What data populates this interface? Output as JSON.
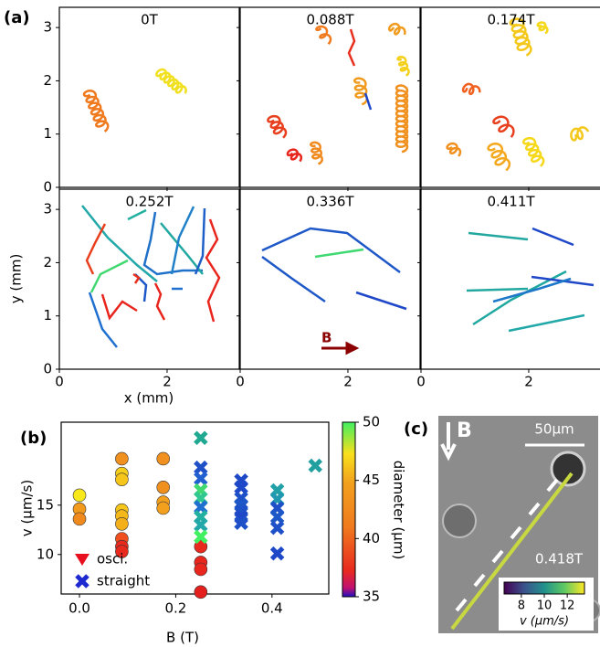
{
  "chart_data": [
    {
      "type": "trajectory",
      "panel_label": "(a)",
      "panels": [
        {
          "title": "0T"
        },
        {
          "title": "0.088T"
        },
        {
          "title": "0.174T"
        },
        {
          "title": "0.252T"
        },
        {
          "title": "0.336T"
        },
        {
          "title": "0.411T"
        }
      ],
      "xlabel": "x (mm)",
      "ylabel": "y (mm)",
      "xlim": [
        0,
        3.34
      ],
      "ylim": [
        0,
        3.38
      ],
      "xticks": [
        0,
        2
      ],
      "yticks": [
        0,
        1,
        2,
        3
      ],
      "annotation": "B"
    },
    {
      "type": "scatter",
      "panel_label": "(b)",
      "xlabel": "B (T)",
      "ylabel": "v (µm/s)",
      "xlim": [
        -0.038,
        0.518
      ],
      "ylim": [
        6.0,
        23.4
      ],
      "xticks": [
        {
          "value": 0,
          "label": "0.0"
        },
        0.2,
        0.4
      ],
      "yticks": [
        10,
        15
      ],
      "legend": "lower left",
      "series": [
        {
          "name": "osci.",
          "marker": "o",
          "x": [
            0,
            0,
            0,
            0.088,
            0.088,
            0.088,
            0.088,
            0.088,
            0.088,
            0.088,
            0.088,
            0.088,
            0.174,
            0.174,
            0.174,
            0.174,
            0.252,
            0.252,
            0.252,
            0.252
          ],
          "values": [
            16.0,
            14.6,
            13.6,
            19.7,
            18.2,
            17.6,
            14.5,
            13.9,
            13.1,
            11.6,
            10.8,
            10.3,
            19.7,
            16.8,
            15.3,
            14.7,
            10.8,
            9.2,
            8.5,
            6.2
          ],
          "colors": [
            "#f8e81c",
            "#f29a1e",
            "#f08a1e",
            "#f0901e",
            "#f6cf1a",
            "#f5c51a",
            "#f5c51a",
            "#f4b81b",
            "#f4b01b",
            "#f0501e",
            "#e82a1e",
            "#e82a1e",
            "#f0901e",
            "#f0901e",
            "#f2a01e",
            "#f2a01e",
            "#e82a1e",
            "#e8261e",
            "#e8261e",
            "#e4201e"
          ]
        },
        {
          "name": "straight",
          "marker": "x",
          "x": [
            0.252,
            0.252,
            0.252,
            0.252,
            0.252,
            0.252,
            0.252,
            0.252,
            0.252,
            0.336,
            0.336,
            0.336,
            0.336,
            0.336,
            0.336,
            0.336,
            0.411,
            0.411,
            0.411,
            0.411,
            0.411,
            0.411,
            0.49
          ],
          "values": [
            21.8,
            18.8,
            17.7,
            16.5,
            15.7,
            14.8,
            13.8,
            13.0,
            11.8,
            17.5,
            16.8,
            15.7,
            15.0,
            14.4,
            13.8,
            13.2,
            16.5,
            15.6,
            14.7,
            13.8,
            12.7,
            10.1,
            19.0
          ],
          "colors": [
            "#20a890",
            "#2050c8",
            "#2060d0",
            "#40d870",
            "#30c890",
            "#2070d0",
            "#22b0a0",
            "#22a8a8",
            "#40f060",
            "#1e48c8",
            "#1e48c8",
            "#1e50c8",
            "#1e58c8",
            "#1e50c8",
            "#1e48c8",
            "#1e50c8",
            "#22a0a8",
            "#2098b0",
            "#1e50c8",
            "#1e58c8",
            "#1e50c8",
            "#1e48c8",
            "#22a0a0"
          ]
        }
      ],
      "colorbar": {
        "label": "diameter (µm)",
        "lim": [
          35,
          50
        ],
        "ticks": [
          35,
          40,
          45,
          50
        ]
      }
    },
    {
      "type": "image",
      "panel_label": "(c)",
      "annotations": [
        "B",
        "50µm",
        "0.418T"
      ],
      "colorbar": {
        "label": "v (µm/s)",
        "lim": [
          6.5,
          13.5
        ],
        "ticks": [
          8,
          10,
          12
        ]
      }
    }
  ]
}
